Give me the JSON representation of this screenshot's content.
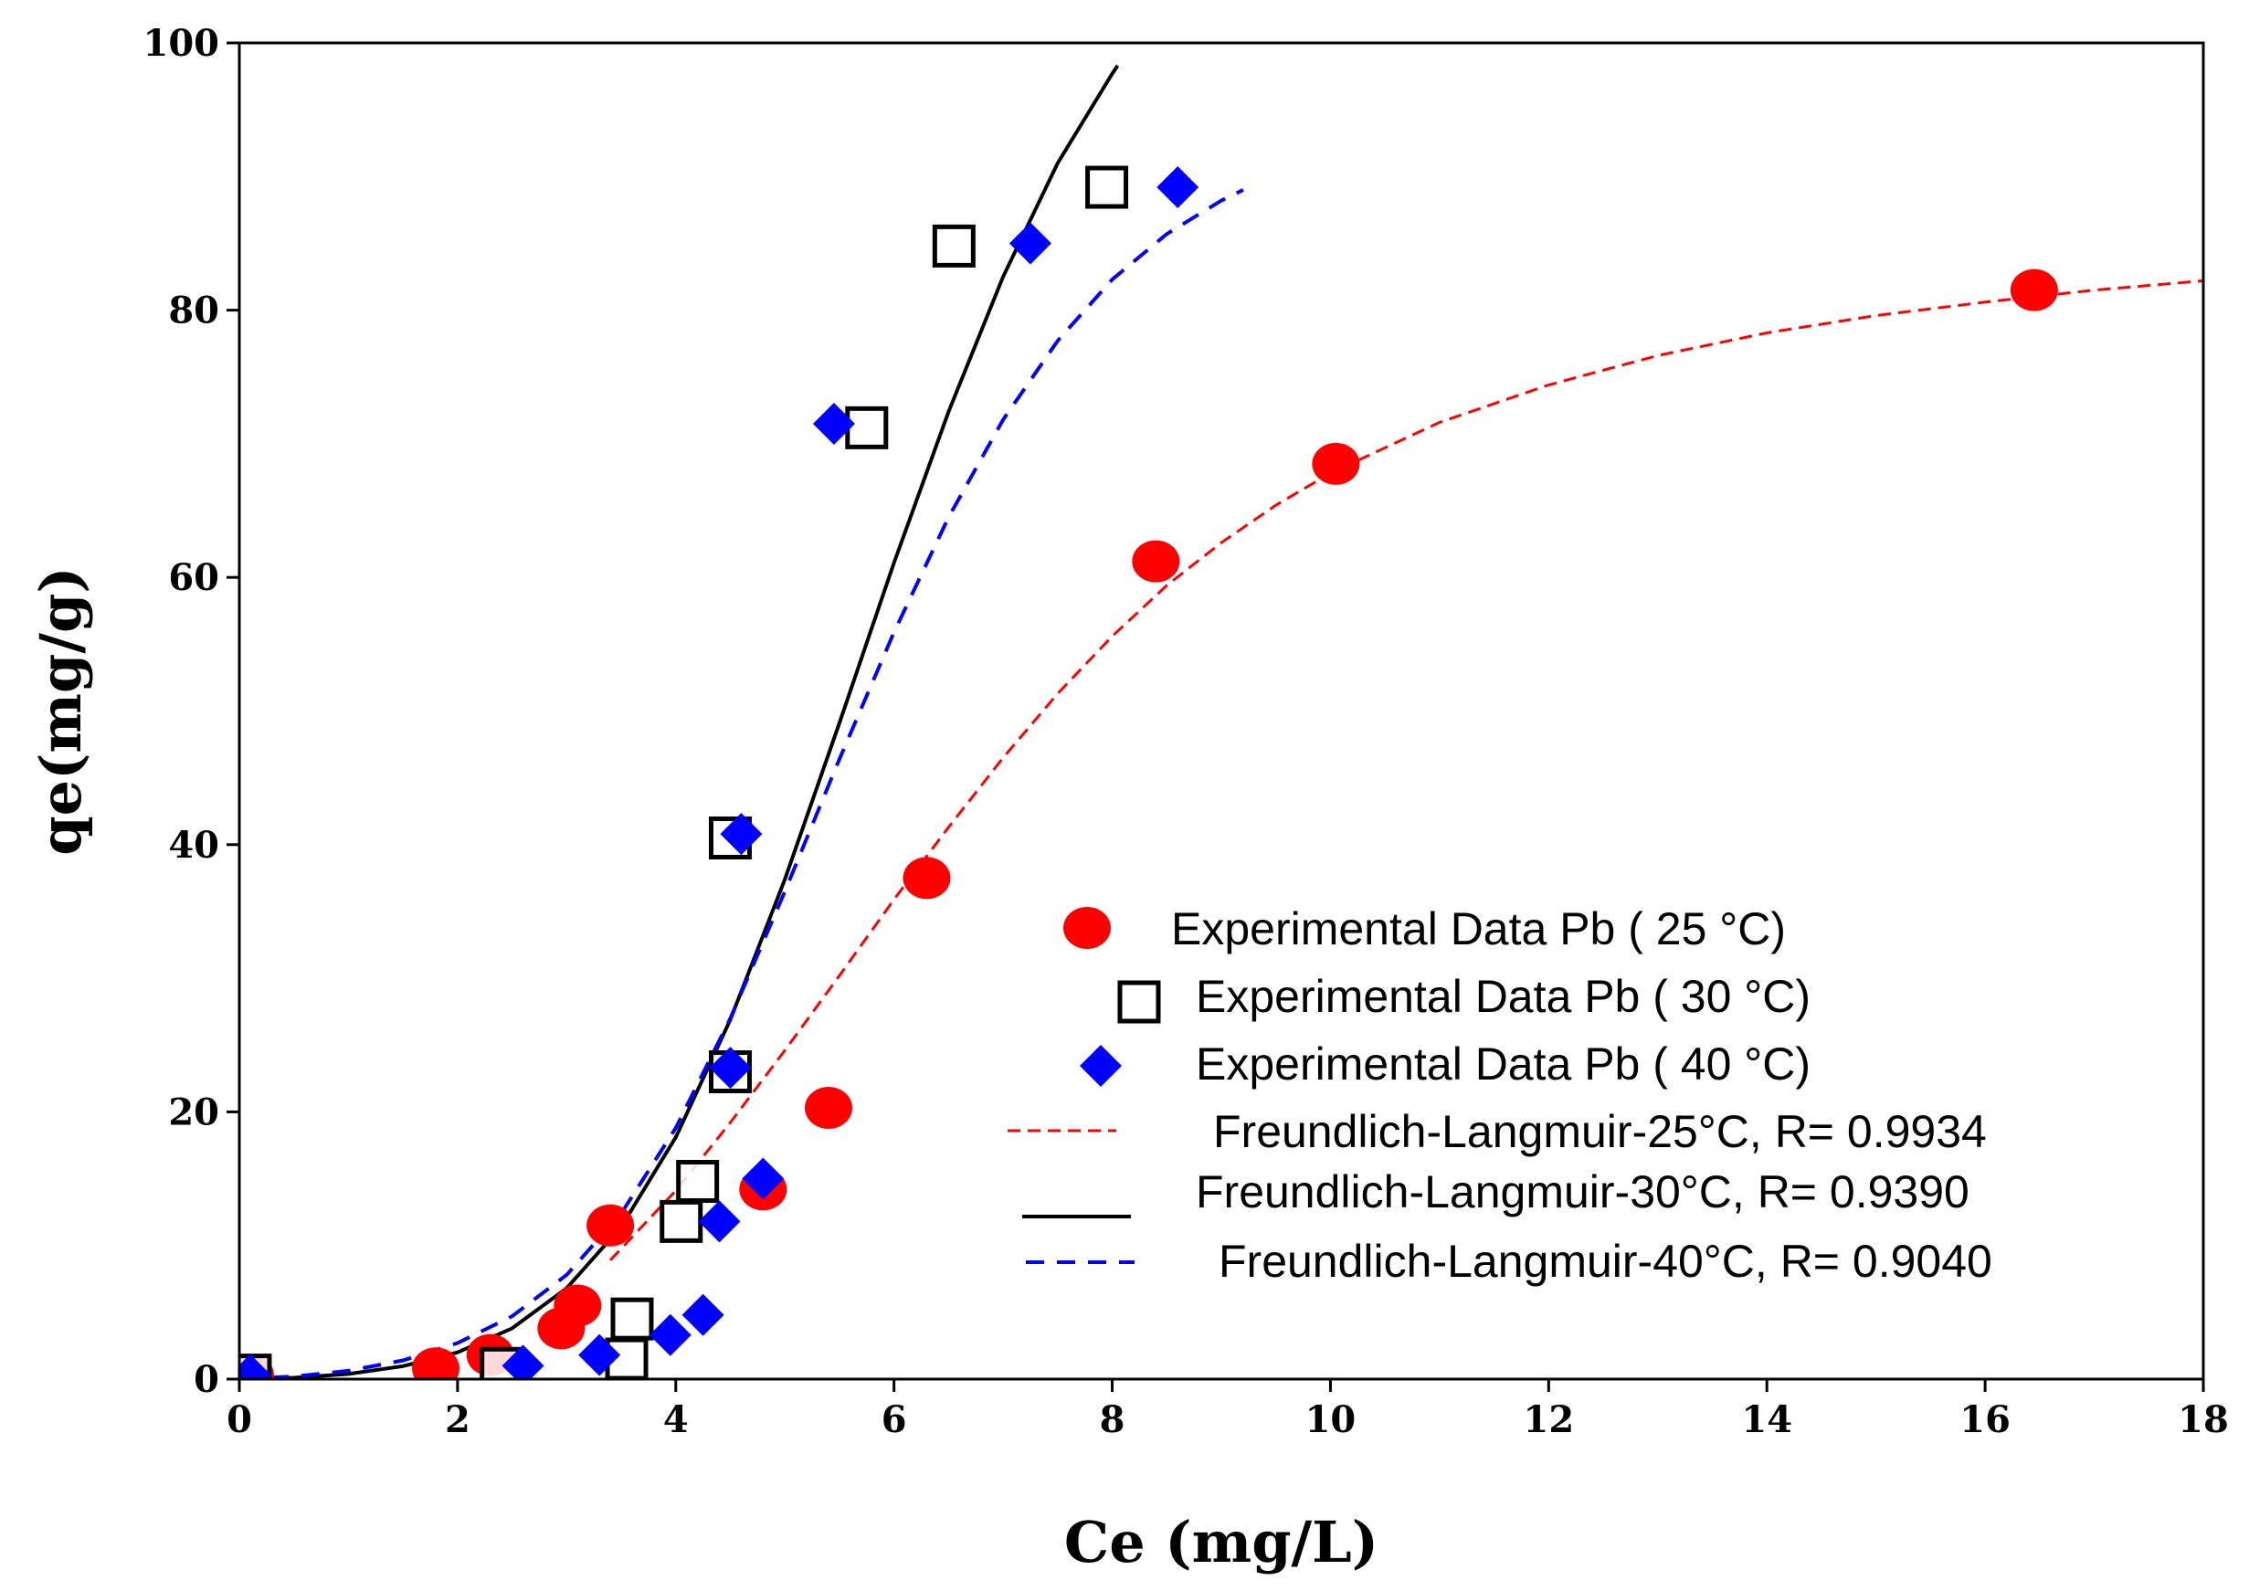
{
  "chart_data": {
    "type": "scatter",
    "title": "",
    "xlabel": "Ce (mg/L)",
    "ylabel": "qe(mg/g)",
    "xlim": [
      0,
      18
    ],
    "ylim": [
      0,
      100
    ],
    "xticks": [
      0,
      2,
      4,
      6,
      8,
      10,
      12,
      14,
      16,
      18
    ],
    "yticks": [
      0,
      20,
      40,
      60,
      80,
      100
    ],
    "grid": false,
    "legend_position": "bottom-right",
    "series": [
      {
        "name": "Experimental Data Pb ( 25 °C)",
        "kind": "scatter",
        "marker": "circle",
        "color": "#ff0000",
        "points": [
          [
            0.1,
            0.3
          ],
          [
            1.8,
            0.8
          ],
          [
            2.3,
            1.8
          ],
          [
            2.95,
            3.8
          ],
          [
            3.1,
            5.5
          ],
          [
            3.4,
            11.5
          ],
          [
            4.8,
            14.2
          ],
          [
            5.4,
            20.3
          ],
          [
            6.3,
            37.5
          ],
          [
            8.4,
            61.2
          ],
          [
            10.05,
            68.5
          ],
          [
            16.45,
            81.5
          ]
        ]
      },
      {
        "name": "Experimental Data Pb ( 30 °C)",
        "kind": "scatter",
        "marker": "square-open",
        "color": "#000000",
        "points": [
          [
            0.1,
            0.3
          ],
          [
            2.4,
            0.8
          ],
          [
            3.55,
            1.5
          ],
          [
            3.6,
            4.5
          ],
          [
            4.05,
            11.8
          ],
          [
            4.2,
            14.8
          ],
          [
            4.5,
            23.0
          ],
          [
            4.5,
            40.5
          ],
          [
            5.75,
            71.2
          ],
          [
            6.55,
            84.8
          ],
          [
            7.95,
            89.2
          ]
        ]
      },
      {
        "name": "Experimental Data Pb ( 40 °C)",
        "kind": "scatter",
        "marker": "diamond",
        "color": "#0000ff",
        "points": [
          [
            0.1,
            0.3
          ],
          [
            2.6,
            1.0
          ],
          [
            3.3,
            1.8
          ],
          [
            3.95,
            3.3
          ],
          [
            4.25,
            4.8
          ],
          [
            4.4,
            11.8
          ],
          [
            4.8,
            15.0
          ],
          [
            4.5,
            23.3
          ],
          [
            4.6,
            40.8
          ],
          [
            5.45,
            71.5
          ],
          [
            7.25,
            85.0
          ],
          [
            8.6,
            89.2
          ]
        ]
      },
      {
        "name": "Freundlich-Langmuir-25°C, R= 0.9934",
        "kind": "line",
        "dash": "red-dash",
        "color": "#ff0000",
        "x": [
          3.4,
          4.0,
          4.5,
          5.0,
          5.5,
          6.0,
          6.5,
          7.0,
          7.5,
          8.0,
          8.5,
          9.0,
          9.5,
          10.0,
          11.0,
          12.0,
          13.0,
          14.0,
          15.0,
          16.0,
          17.0,
          18.0
        ],
        "y": [
          8.9,
          14.1,
          19.2,
          24.6,
          30.2,
          35.9,
          41.3,
          46.5,
          51.3,
          55.6,
          59.4,
          62.6,
          65.4,
          67.8,
          71.6,
          74.4,
          76.6,
          78.3,
          79.6,
          80.6,
          81.5,
          82.2
        ]
      },
      {
        "name": "Freundlich-Langmuir-30°C, R= 0.9390",
        "kind": "line",
        "dash": "solid",
        "color": "#000000",
        "x": [
          0,
          0.5,
          1.0,
          1.5,
          2.0,
          2.5,
          3.0,
          3.5,
          4.0,
          4.5,
          5.0,
          5.5,
          6.0,
          6.5,
          7.0,
          7.5,
          8.0,
          8.05
        ],
        "y": [
          0.01,
          0.1,
          0.38,
          0.97,
          2.0,
          3.8,
          6.8,
          11.4,
          18.1,
          26.9,
          37.4,
          49.1,
          61.1,
          72.4,
          82.5,
          91.0,
          97.7,
          98.3
        ]
      },
      {
        "name": "Freundlich-Langmuir-40°C, R= 0.9040",
        "kind": "line",
        "dash": "blue-dash",
        "color": "#0000ff",
        "x": [
          0,
          0.5,
          1.0,
          1.5,
          2.0,
          2.5,
          3.0,
          3.5,
          4.0,
          4.5,
          5.0,
          5.5,
          6.0,
          6.5,
          7.0,
          7.5,
          8.0,
          8.5,
          9.0,
          9.2
        ],
        "y": [
          0.01,
          0.2,
          0.62,
          1.4,
          2.7,
          4.7,
          7.8,
          12.4,
          18.8,
          27.0,
          36.5,
          46.4,
          55.9,
          64.5,
          71.8,
          77.7,
          82.3,
          85.7,
          88.2,
          89.0
        ]
      }
    ]
  }
}
